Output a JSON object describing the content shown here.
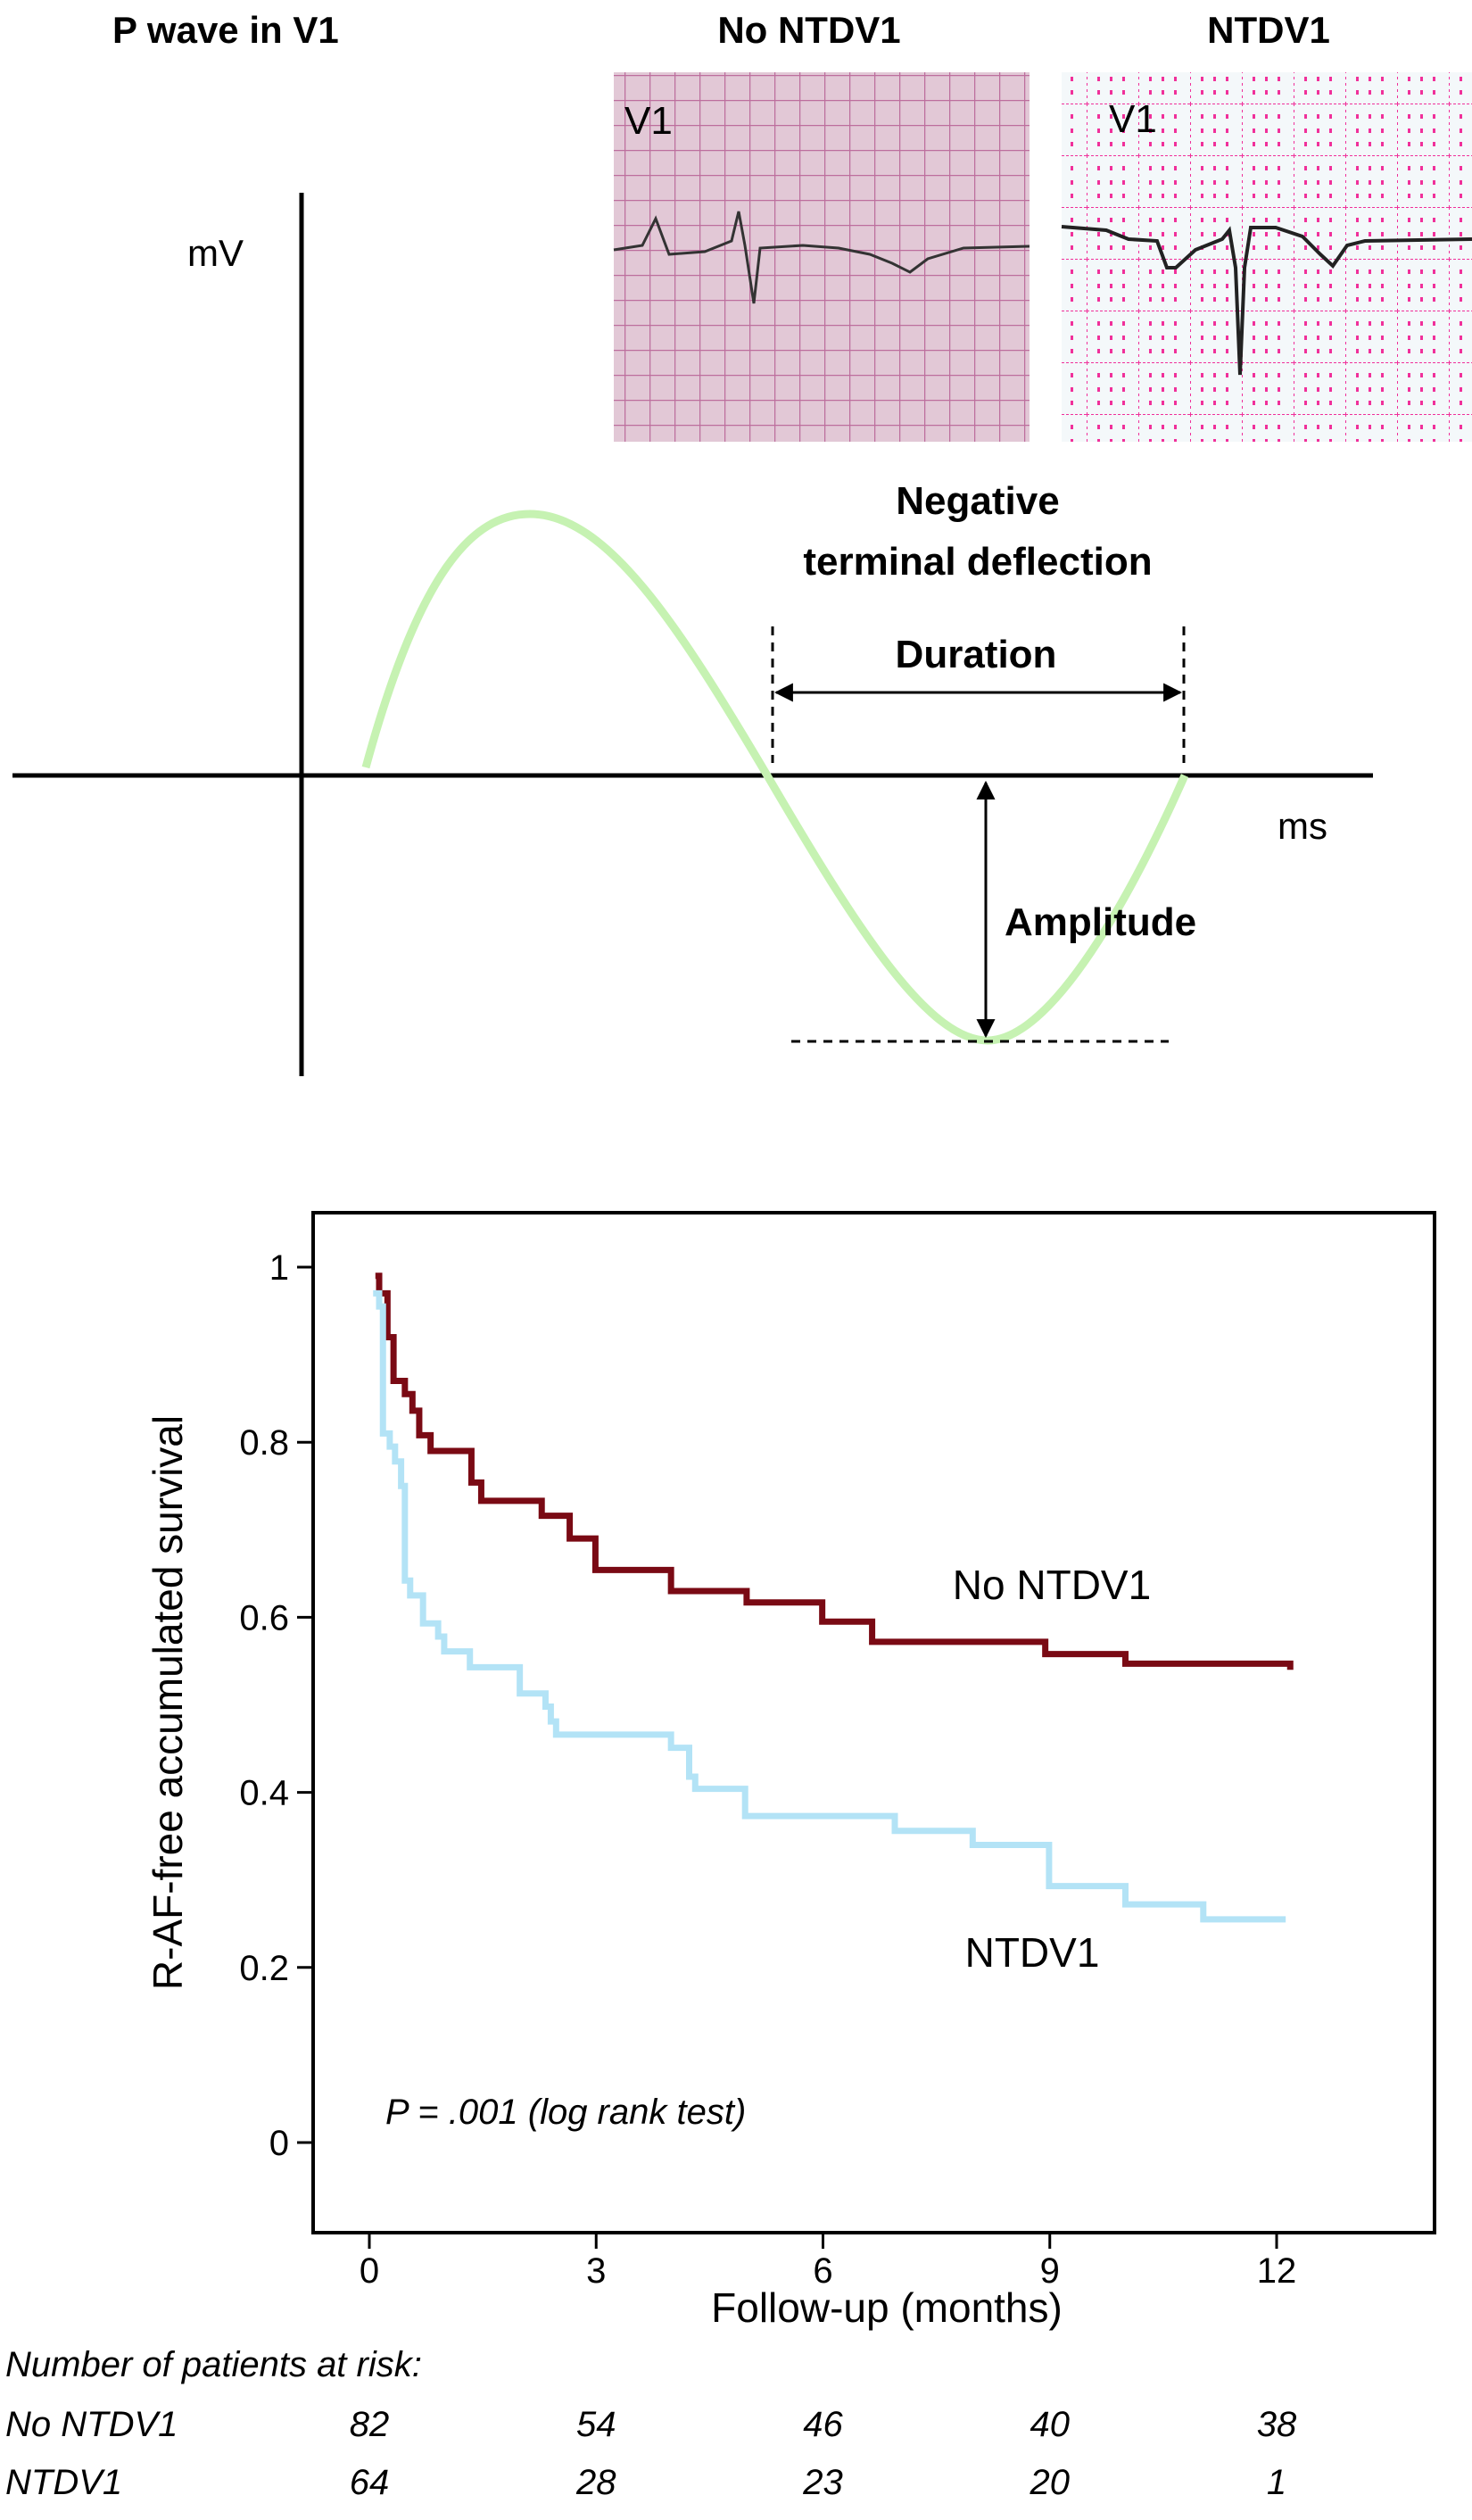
{
  "diagram": {
    "title": "P wave in V1",
    "panel_left_title": "No NTDV1",
    "panel_right_title": "NTDV1",
    "lead_label_left": "V1",
    "lead_label_right": "V1",
    "y_unit": "mV",
    "x_unit": "ms",
    "deflection_label_line1": "Negative",
    "deflection_label_line2": "terminal deflection",
    "duration_label": "Duration",
    "amplitude_label": "Amplitude",
    "colors": {
      "p_wave": "#c6f2b2",
      "ecg_grid_left": "#b0508a",
      "ecg_grid_right": "#f0309a"
    }
  },
  "chart_data": {
    "type": "line",
    "step": true,
    "xlabel": "Follow-up (months)",
    "ylabel": "R-AF-free accumulated survival",
    "xlim": [
      -0.5,
      15.5
    ],
    "ylim": [
      -0.1,
      1.1
    ],
    "xticks": [
      "0",
      "3",
      "6",
      "9",
      "12"
    ],
    "xtick_values": [
      0,
      3,
      6,
      9,
      12
    ],
    "yticks": [
      "0",
      "0.2",
      "0.4",
      "0.6",
      "0.8",
      "1"
    ],
    "ytick_values": [
      0,
      0.2,
      0.4,
      0.6,
      0.8,
      1
    ],
    "grid": false,
    "annotation": "P = .001 (log rank test)",
    "series": [
      {
        "name": "No NTDV1",
        "color": "#7a0a14",
        "x": [
          0.08,
          0.13,
          0.24,
          0.32,
          0.47,
          0.57,
          0.66,
          0.81,
          1.35,
          1.48,
          2.28,
          2.65,
          2.99,
          3.99,
          4.99,
          5.99,
          6.65,
          8.94,
          10.0,
          12.18
        ],
        "y": [
          0.99,
          0.97,
          0.92,
          0.87,
          0.855,
          0.836,
          0.808,
          0.79,
          0.754,
          0.733,
          0.716,
          0.69,
          0.654,
          0.63,
          0.617,
          0.595,
          0.572,
          0.558,
          0.547,
          0.54
        ]
      },
      {
        "name": "NTDV1",
        "color": "#b3e3f6",
        "x": [
          0.05,
          0.13,
          0.18,
          0.27,
          0.34,
          0.42,
          0.47,
          0.54,
          0.71,
          0.91,
          0.99,
          1.33,
          1.99,
          2.33,
          2.4,
          2.47,
          3.99,
          4.23,
          4.31,
          4.97,
          6.95,
          7.98,
          8.99,
          10.0,
          11.03,
          12.12
        ],
        "y": [
          0.97,
          0.955,
          0.81,
          0.795,
          0.778,
          0.75,
          0.642,
          0.625,
          0.593,
          0.578,
          0.561,
          0.543,
          0.513,
          0.498,
          0.481,
          0.466,
          0.451,
          0.418,
          0.404,
          0.373,
          0.356,
          0.34,
          0.293,
          0.272,
          0.255,
          0.255
        ]
      }
    ],
    "risk_table": {
      "title": "Number of patients at risk:",
      "rows": [
        {
          "label": "No NTDV1",
          "values": [
            "82",
            "54",
            "46",
            "40",
            "38"
          ]
        },
        {
          "label": "NTDV1",
          "values": [
            "64",
            "28",
            "23",
            "20",
            "1"
          ]
        }
      ]
    }
  }
}
